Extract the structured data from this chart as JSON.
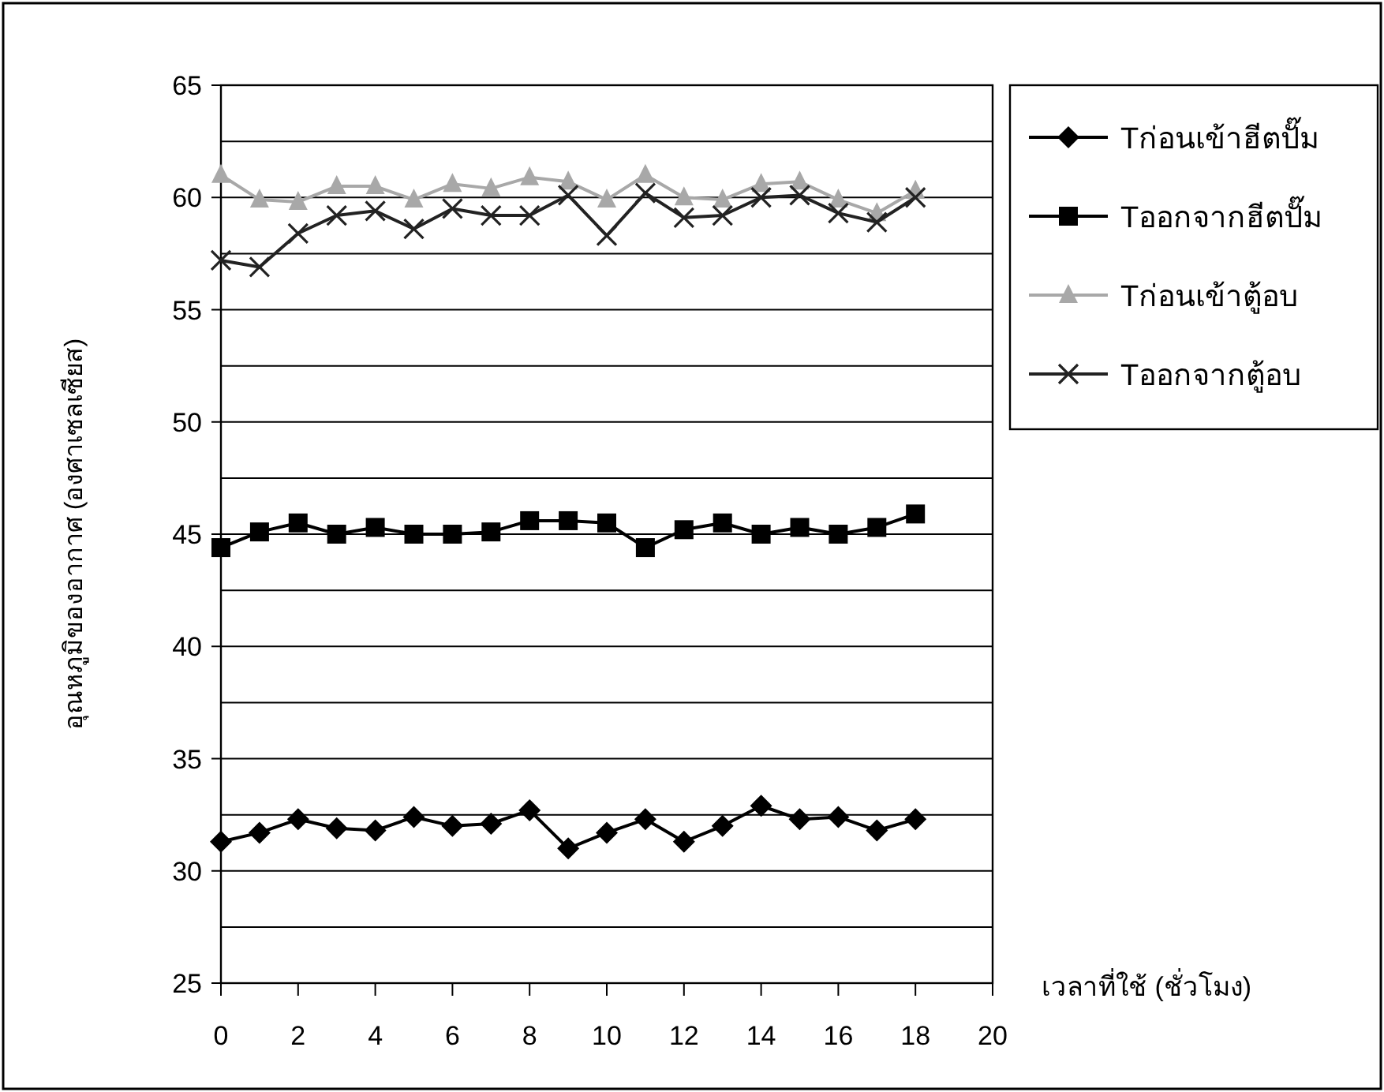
{
  "chart_data": {
    "type": "line",
    "ylabel": "อุณหภูมิของอากาศ (องศาเซลเซียส)",
    "xlabel": "เวลาที่ใช้ (ชั่วโมง)",
    "x": [
      0,
      1,
      2,
      3,
      4,
      5,
      6,
      7,
      8,
      9,
      10,
      11,
      12,
      13,
      14,
      15,
      16,
      17,
      18
    ],
    "xlim": [
      0,
      20
    ],
    "xticks": [
      0,
      2,
      4,
      6,
      8,
      10,
      12,
      14,
      16,
      18,
      20
    ],
    "ylim": [
      25,
      65
    ],
    "yticks": [
      25,
      {
        "value": 27.5,
        "label": null
      },
      30,
      {
        "value": 32.5,
        "label": null
      },
      35,
      {
        "value": 37.5,
        "label": null
      },
      40,
      {
        "value": 42.5,
        "label": null
      },
      45,
      {
        "value": 47.5,
        "label": null
      },
      50,
      {
        "value": 52.5,
        "label": null
      },
      55,
      {
        "value": 57.5,
        "label": null
      },
      60,
      {
        "value": 62.5,
        "label": null
      },
      65
    ],
    "grid": "y",
    "legend": "top right",
    "series": [
      {
        "name": "Tก่อนเข้าฮีตปั๊ม",
        "color": "#000000",
        "marker": "diamond",
        "values": [
          31.3,
          31.7,
          32.3,
          31.9,
          31.8,
          32.4,
          32.0,
          32.1,
          32.7,
          31.0,
          31.7,
          32.3,
          31.3,
          32.0,
          32.9,
          32.3,
          32.4,
          31.8,
          32.3
        ]
      },
      {
        "name": "Tออกจากฮีตปั๊ม",
        "color": "#000000",
        "marker": "square",
        "values": [
          44.4,
          45.1,
          45.5,
          45.0,
          45.3,
          45.0,
          45.0,
          45.1,
          45.6,
          45.6,
          45.5,
          44.4,
          45.2,
          45.5,
          45.0,
          45.3,
          45.0,
          45.3,
          45.9
        ]
      },
      {
        "name": "Tก่อนเข้าตู้อบ",
        "color": "#a8a8a8",
        "marker": "triangle",
        "values": [
          61.0,
          59.9,
          59.8,
          60.5,
          60.5,
          59.9,
          60.6,
          60.4,
          60.9,
          60.7,
          59.9,
          61.0,
          60.0,
          59.9,
          60.6,
          60.7,
          59.9,
          59.3,
          60.3
        ]
      },
      {
        "name": "Tออกจากตู้อบ",
        "color": "#222222",
        "marker": "cross",
        "values": [
          57.2,
          56.9,
          58.4,
          59.2,
          59.4,
          58.6,
          59.5,
          59.2,
          59.2,
          60.1,
          58.3,
          60.2,
          59.1,
          59.2,
          60.0,
          60.1,
          59.3,
          58.9,
          60.0
        ]
      }
    ]
  }
}
